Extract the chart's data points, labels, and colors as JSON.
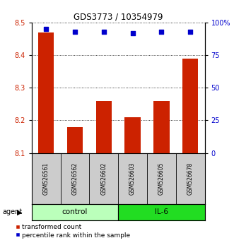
{
  "title": "GDS3773 / 10354979",
  "samples": [
    "GSM526561",
    "GSM526562",
    "GSM526602",
    "GSM526603",
    "GSM526605",
    "GSM526678"
  ],
  "bar_values": [
    8.47,
    8.18,
    8.26,
    8.21,
    8.26,
    8.39
  ],
  "percentile_values": [
    95,
    93,
    93,
    92,
    93,
    93
  ],
  "bar_color": "#cc2200",
  "dot_color": "#0000cc",
  "ylim_left": [
    8.1,
    8.5
  ],
  "ylim_right": [
    0,
    100
  ],
  "yticks_left": [
    8.1,
    8.2,
    8.3,
    8.4,
    8.5
  ],
  "yticks_right": [
    0,
    25,
    50,
    75,
    100
  ],
  "ytick_labels_right": [
    "0",
    "25",
    "50",
    "75",
    "100%"
  ],
  "groups": [
    {
      "label": "control",
      "indices": [
        0,
        1,
        2
      ],
      "color": "#bbffbb"
    },
    {
      "label": "IL-6",
      "indices": [
        3,
        4,
        5
      ],
      "color": "#22dd22"
    }
  ],
  "agent_label": "agent",
  "legend_entries": [
    "transformed count",
    "percentile rank within the sample"
  ],
  "bg_color": "#ffffff",
  "tick_label_area_color": "#cccccc"
}
